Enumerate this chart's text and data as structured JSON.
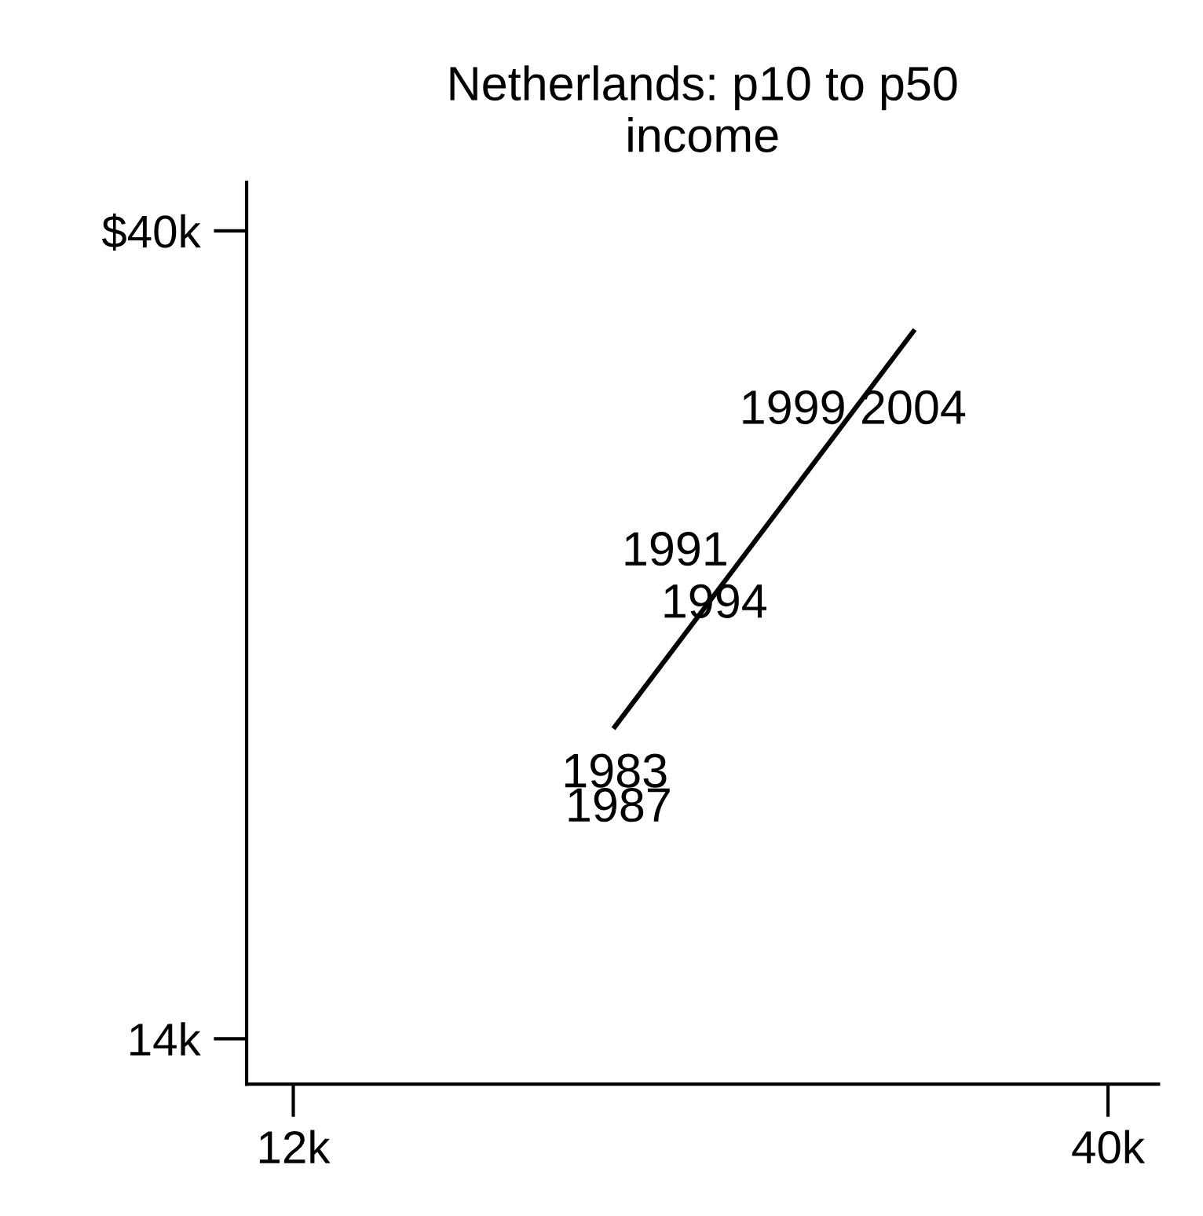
{
  "chart_data": {
    "type": "line",
    "title": "Netherlands: p10 to p50\nincome",
    "log": "xy",
    "xlim": [
      11.2,
      43.1
    ],
    "ylim": [
      13.2,
      42.6
    ],
    "xticks": [
      {
        "value": 12,
        "label": "12k"
      },
      {
        "value": 40,
        "label": "40k"
      }
    ],
    "yticks": [
      {
        "value": 14,
        "label": "14k"
      },
      {
        "value": 40,
        "label": "$40k"
      }
    ],
    "grid": false,
    "legend": false,
    "series": [
      {
        "color": "#000000",
        "x": [
          19.3,
          30.0
        ],
        "values": [
          21.0,
          35.1
        ]
      }
    ],
    "annotations": [
      "1983",
      "1987",
      "1991",
      "1994",
      "1999",
      "2004"
    ]
  }
}
